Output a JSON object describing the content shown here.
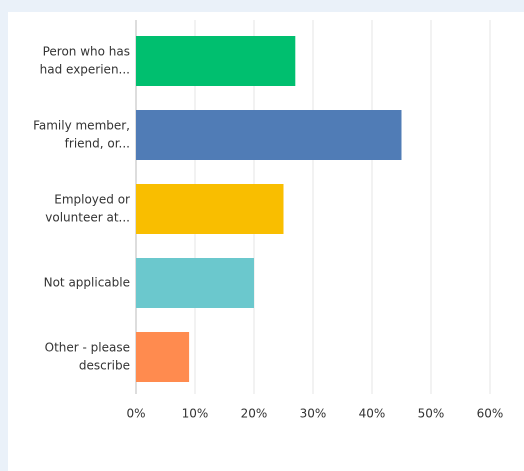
{
  "chart_data": {
    "type": "bar",
    "orientation": "horizontal",
    "categories": [
      [
        "Peron who has",
        "had experien..."
      ],
      [
        "Family member,",
        "friend, or..."
      ],
      [
        "Employed or",
        "volunteer at..."
      ],
      [
        "Not applicable"
      ],
      [
        "Other - please",
        "describe"
      ]
    ],
    "values": [
      27,
      45,
      25,
      20,
      9
    ],
    "colors": [
      "#00bf6f",
      "#507cb6",
      "#f9be00",
      "#6bc8cd",
      "#ff8b4f"
    ],
    "xlim": [
      0,
      60
    ],
    "xticks": [
      {
        "value": 0,
        "label": "0%"
      },
      {
        "value": 10,
        "label": "10%"
      },
      {
        "value": 20,
        "label": "20%"
      },
      {
        "value": 30,
        "label": "30%"
      },
      {
        "value": 40,
        "label": "40%"
      },
      {
        "value": 50,
        "label": "50%"
      },
      {
        "value": 60,
        "label": "60%"
      }
    ],
    "grid": true
  }
}
